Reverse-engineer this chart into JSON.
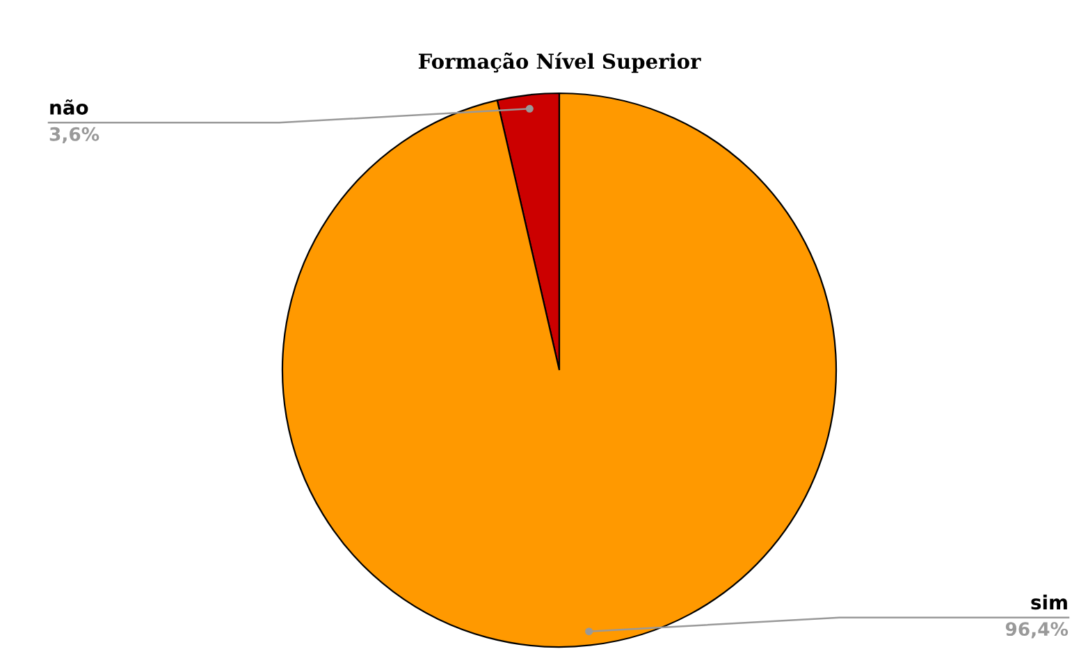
{
  "chart_data": {
    "type": "pie",
    "title": "Formação Nível Superior",
    "categories": [
      "não",
      "sim"
    ],
    "values": [
      3.6,
      96.4
    ],
    "colors": [
      "#cc0000",
      "#ff9900"
    ],
    "value_labels": [
      "3,6%",
      "96,4%"
    ]
  }
}
